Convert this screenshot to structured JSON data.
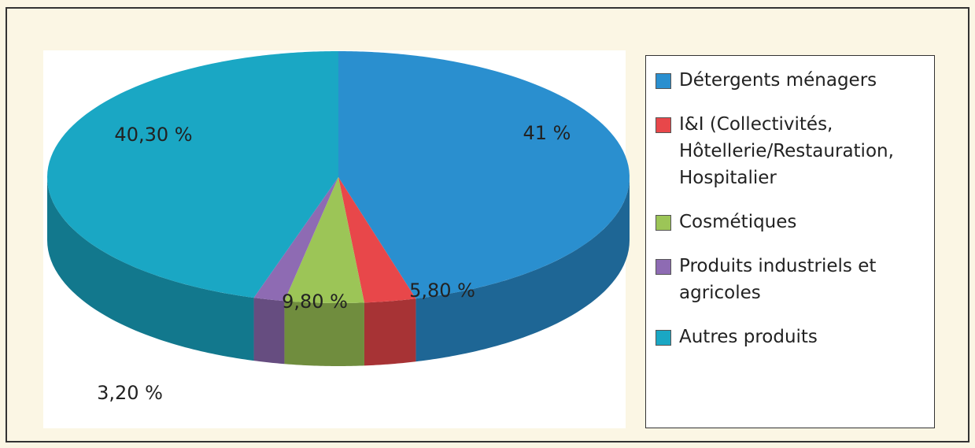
{
  "chart_data": {
    "type": "pie",
    "categories": [
      "Détergents ménagers",
      "I&I (Collectivités, Hôtellerie/Restauration, Hospitalier",
      "Cosmétiques",
      "Produits industriels et agricoles",
      "Autres produits"
    ],
    "values": [
      41,
      5.8,
      9.8,
      3.2,
      40.3
    ],
    "value_labels": [
      "41 %",
      "5,80 %",
      "9,80 %",
      "3,20 %",
      "40,30 %"
    ],
    "colors": [
      "#2a8fcf",
      "#e8474a",
      "#9cc557",
      "#8e6bb3",
      "#1aa7c4"
    ],
    "legend": "right"
  }
}
